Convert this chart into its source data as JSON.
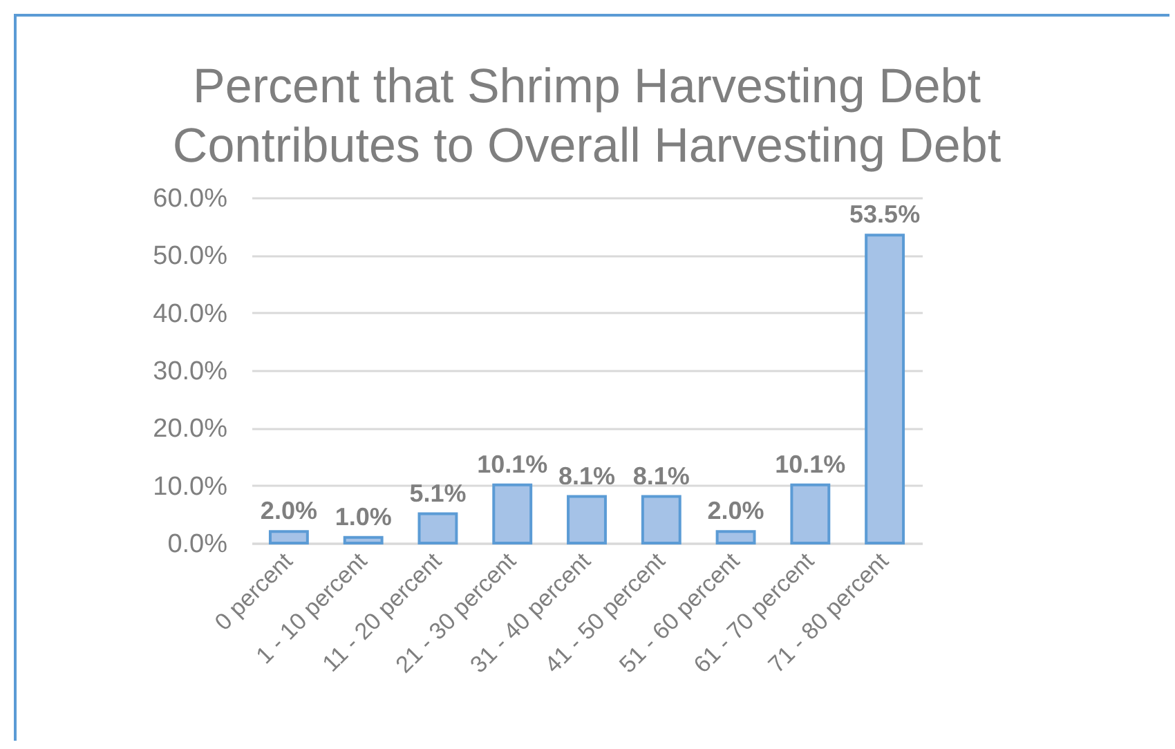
{
  "chart_data": {
    "type": "bar",
    "title": "Percent that Shrimp Harvesting Debt Contributes to Overall Harvesting Debt",
    "categories": [
      "0 percent",
      "1 - 10 percent",
      "11 - 20 percent",
      "21 - 30 percent",
      "31 - 40 percent",
      "41 - 50 percent",
      "51 - 60 percent",
      "61 - 70 percent",
      "71 - 80 percent"
    ],
    "values": [
      2.0,
      1.0,
      5.1,
      10.1,
      8.1,
      8.1,
      2.0,
      10.1,
      53.5
    ],
    "value_labels": [
      "2.0%",
      "1.0%",
      "5.1%",
      "10.1%",
      "8.1%",
      "8.1%",
      "2.0%",
      "10.1%",
      "53.5%"
    ],
    "color": "#a5c2e7",
    "ylim": [
      0,
      60
    ],
    "yticks": [
      {
        "value": 0,
        "label": "0.0%"
      },
      {
        "value": 10,
        "label": "10.0%"
      },
      {
        "value": 20,
        "label": "20.0%"
      },
      {
        "value": 30,
        "label": "30.0%"
      },
      {
        "value": 40,
        "label": "40.0%"
      },
      {
        "value": 50,
        "label": "50.0%"
      },
      {
        "value": 60,
        "label": "60.0%"
      }
    ],
    "grid": "y"
  }
}
